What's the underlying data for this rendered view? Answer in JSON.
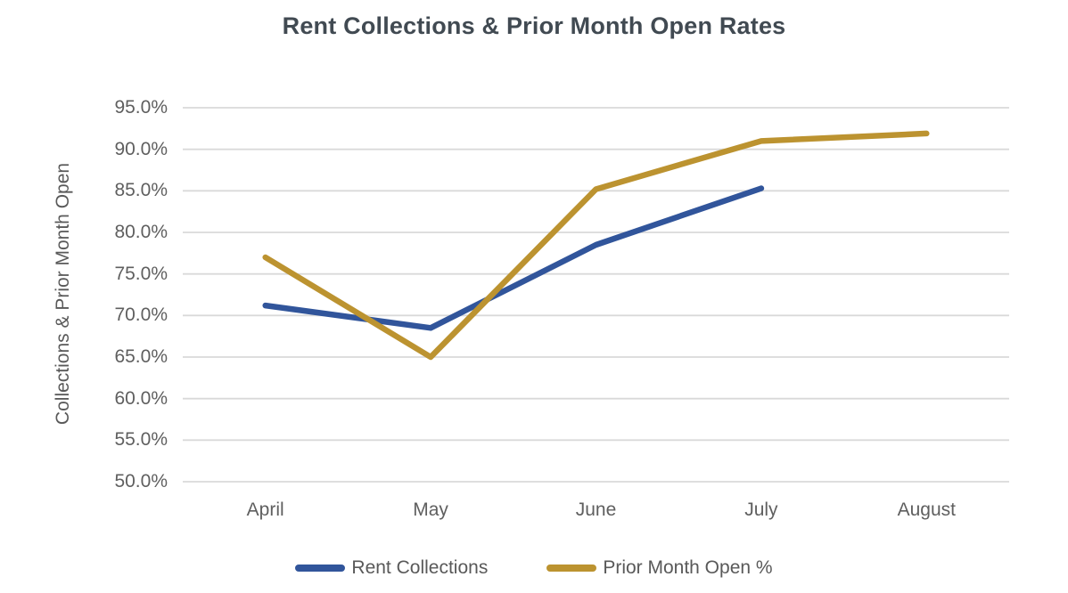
{
  "title": "Rent Collections & Prior Month Open Rates",
  "chart_data": {
    "type": "line",
    "title": "Rent Collections & Prior Month Open Rates",
    "categories": [
      "April",
      "May",
      "June",
      "July",
      "August"
    ],
    "series": [
      {
        "name": "Rent Collections",
        "color": "#31559B",
        "values": [
          71.2,
          68.5,
          78.5,
          85.3,
          null
        ]
      },
      {
        "name": "Prior Month Open %",
        "color": "#BC9330",
        "values": [
          77.0,
          65.0,
          85.2,
          91.0,
          91.9
        ]
      }
    ],
    "xlabel": "",
    "ylabel": "Collections & Prior Month Open",
    "ylim": [
      50,
      95
    ],
    "yticks": [
      50,
      55,
      60,
      65,
      70,
      75,
      80,
      85,
      90,
      95
    ],
    "ytick_labels": [
      "50.0%",
      "55.0%",
      "60.0%",
      "65.0%",
      "70.0%",
      "75.0%",
      "80.0%",
      "85.0%",
      "90.0%",
      "95.0%"
    ],
    "grid": true,
    "gridline_color": "#D9D9D9",
    "legend_position": "bottom"
  }
}
